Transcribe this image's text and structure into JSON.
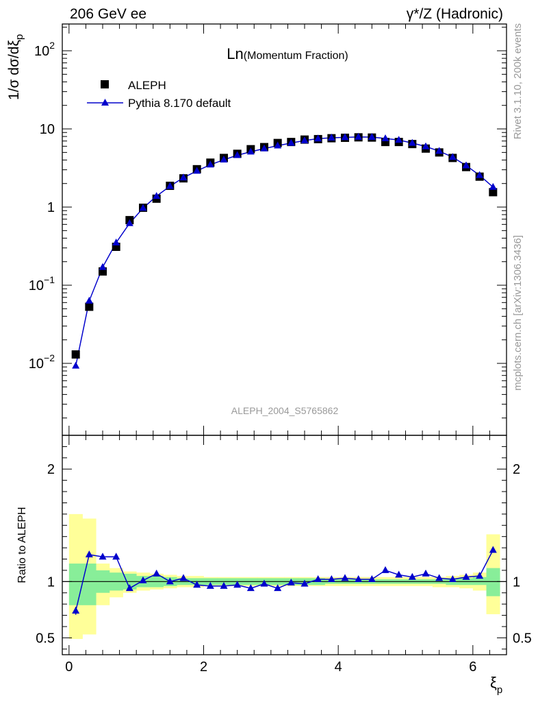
{
  "header": {
    "left": "206 GeV ee",
    "right": "γ*/Z (Hadronic)"
  },
  "side_labels": {
    "rivet": "Rivet 3.1.10,  200k events",
    "mcplots": "mcplots.cern.ch [arXiv:1306.3436]"
  },
  "colors": {
    "data": "#000000",
    "mc": "#0000cc",
    "band_inner": "#88ee99",
    "band_outer": "#ffff99",
    "watermark": "#999999"
  },
  "chart_data": [
    {
      "type": "scatter",
      "title": "Ln(Momentum Fraction)",
      "title_main": "Ln",
      "title_sub": "(Momentum Fraction)",
      "ylabel": "1/σ dσ/dξ",
      "ylabel_sub": "p",
      "watermark": "ALEPH_2004_S5765862",
      "yscale": "log",
      "xlim": [
        -0.1,
        6.5
      ],
      "ylim": [
        0.0012,
        220
      ],
      "legend_position": "top-left",
      "yticks": [
        {
          "value": 0.01,
          "base": "10",
          "exp": "−2"
        },
        {
          "value": 0.1,
          "base": "10",
          "exp": "−1"
        },
        {
          "value": 1,
          "base": "1",
          "exp": ""
        },
        {
          "value": 10,
          "base": "10",
          "exp": ""
        },
        {
          "value": 100,
          "base": "10",
          "exp": "2"
        }
      ],
      "x": [
        0.1,
        0.3,
        0.5,
        0.7,
        0.9,
        1.1,
        1.3,
        1.5,
        1.7,
        1.9,
        2.1,
        2.3,
        2.5,
        2.7,
        2.9,
        3.1,
        3.3,
        3.5,
        3.7,
        3.9,
        4.1,
        4.3,
        4.5,
        4.7,
        4.9,
        5.1,
        5.3,
        5.5,
        5.7,
        5.9,
        6.1,
        6.3
      ],
      "series": [
        {
          "name": "ALEPH",
          "marker": "square",
          "values": [
            0.013,
            0.053,
            0.15,
            0.31,
            0.68,
            0.98,
            1.28,
            1.87,
            2.33,
            3.05,
            3.7,
            4.25,
            4.8,
            5.5,
            5.85,
            6.6,
            6.8,
            7.3,
            7.4,
            7.6,
            7.7,
            7.8,
            7.75,
            6.8,
            6.8,
            6.4,
            5.6,
            5.0,
            4.25,
            3.25,
            2.45,
            1.55
          ]
        },
        {
          "name": "Pythia 8.170 default",
          "marker": "triangle",
          "values": [
            0.0093,
            0.063,
            0.17,
            0.35,
            0.62,
            0.97,
            1.38,
            1.85,
            2.38,
            2.9,
            3.48,
            4.03,
            4.6,
            5.1,
            5.6,
            6.1,
            6.6,
            7.1,
            7.5,
            7.7,
            7.8,
            7.9,
            7.85,
            7.55,
            7.2,
            6.6,
            5.95,
            5.2,
            4.35,
            3.4,
            2.55,
            1.8
          ]
        }
      ]
    },
    {
      "type": "scatter",
      "title": "",
      "xlabel": "ξ",
      "xlabel_sub": "p",
      "ylabel": "Ratio to ALEPH",
      "xlim": [
        -0.1,
        6.5
      ],
      "ylim": [
        0.35,
        2.3
      ],
      "reference_line": 1,
      "xticks": [
        0,
        2,
        4,
        6
      ],
      "yticks": [
        0.5,
        1,
        2
      ],
      "bin_edges": [
        0.0,
        0.2,
        0.4,
        0.6,
        0.8,
        1.0,
        1.2,
        1.4,
        1.6,
        1.8,
        2.0,
        2.2,
        2.4,
        2.6,
        2.8,
        3.0,
        3.2,
        3.4,
        3.6,
        3.8,
        4.0,
        4.2,
        4.4,
        4.6,
        4.8,
        5.0,
        5.2,
        5.4,
        5.6,
        5.8,
        6.0,
        6.2,
        6.4
      ],
      "band_inner": {
        "low": [
          0.79,
          0.79,
          0.9,
          0.92,
          0.93,
          0.95,
          0.95,
          0.96,
          0.97,
          0.97,
          0.97,
          0.97,
          0.97,
          0.97,
          0.97,
          0.97,
          0.97,
          0.97,
          0.97,
          0.98,
          0.98,
          0.98,
          0.98,
          0.98,
          0.98,
          0.98,
          0.98,
          0.98,
          0.97,
          0.97,
          0.97,
          0.87
        ],
        "high": [
          1.16,
          1.16,
          1.1,
          1.08,
          1.07,
          1.05,
          1.05,
          1.04,
          1.03,
          1.03,
          1.03,
          1.03,
          1.03,
          1.03,
          1.03,
          1.03,
          1.03,
          1.03,
          1.03,
          1.02,
          1.02,
          1.02,
          1.02,
          1.02,
          1.02,
          1.02,
          1.02,
          1.02,
          1.03,
          1.03,
          1.04,
          1.12
        ]
      },
      "band_outer": {
        "low": [
          0.49,
          0.53,
          0.79,
          0.86,
          0.9,
          0.92,
          0.93,
          0.94,
          0.95,
          0.95,
          0.96,
          0.96,
          0.96,
          0.96,
          0.96,
          0.96,
          0.96,
          0.96,
          0.96,
          0.96,
          0.96,
          0.96,
          0.96,
          0.96,
          0.96,
          0.96,
          0.96,
          0.95,
          0.95,
          0.94,
          0.92,
          0.71
        ],
        "high": [
          1.6,
          1.56,
          1.16,
          1.12,
          1.09,
          1.08,
          1.07,
          1.06,
          1.05,
          1.05,
          1.04,
          1.04,
          1.04,
          1.04,
          1.04,
          1.04,
          1.04,
          1.04,
          1.04,
          1.04,
          1.04,
          1.04,
          1.04,
          1.04,
          1.04,
          1.04,
          1.04,
          1.04,
          1.05,
          1.06,
          1.08,
          1.42
        ]
      },
      "series": [
        {
          "name": "Pythia 8.170 default",
          "marker": "triangle",
          "x": [
            0.1,
            0.3,
            0.5,
            0.7,
            0.9,
            1.1,
            1.3,
            1.5,
            1.7,
            1.9,
            2.1,
            2.3,
            2.5,
            2.7,
            2.9,
            3.1,
            3.3,
            3.5,
            3.7,
            3.9,
            4.1,
            4.3,
            4.5,
            4.7,
            4.9,
            5.1,
            5.3,
            5.5,
            5.7,
            5.9,
            6.1,
            6.3
          ],
          "values": [
            0.74,
            1.24,
            1.22,
            1.22,
            0.94,
            1.01,
            1.07,
            1.0,
            1.03,
            0.97,
            0.96,
            0.96,
            0.97,
            0.94,
            0.98,
            0.94,
            0.99,
            0.98,
            1.02,
            1.02,
            1.03,
            1.02,
            1.02,
            1.1,
            1.06,
            1.04,
            1.07,
            1.03,
            1.02,
            1.04,
            1.05,
            1.28
          ],
          "err": [
            0.035,
            0.02,
            0.015,
            0.012,
            0.01,
            0.008,
            0.008,
            0.006,
            0.006,
            0.006,
            0.006,
            0.006,
            0.005,
            0.005,
            0.005,
            0.005,
            0.005,
            0.005,
            0.005,
            0.005,
            0.005,
            0.005,
            0.005,
            0.005,
            0.005,
            0.005,
            0.005,
            0.006,
            0.006,
            0.007,
            0.01,
            0.015
          ]
        }
      ]
    }
  ]
}
